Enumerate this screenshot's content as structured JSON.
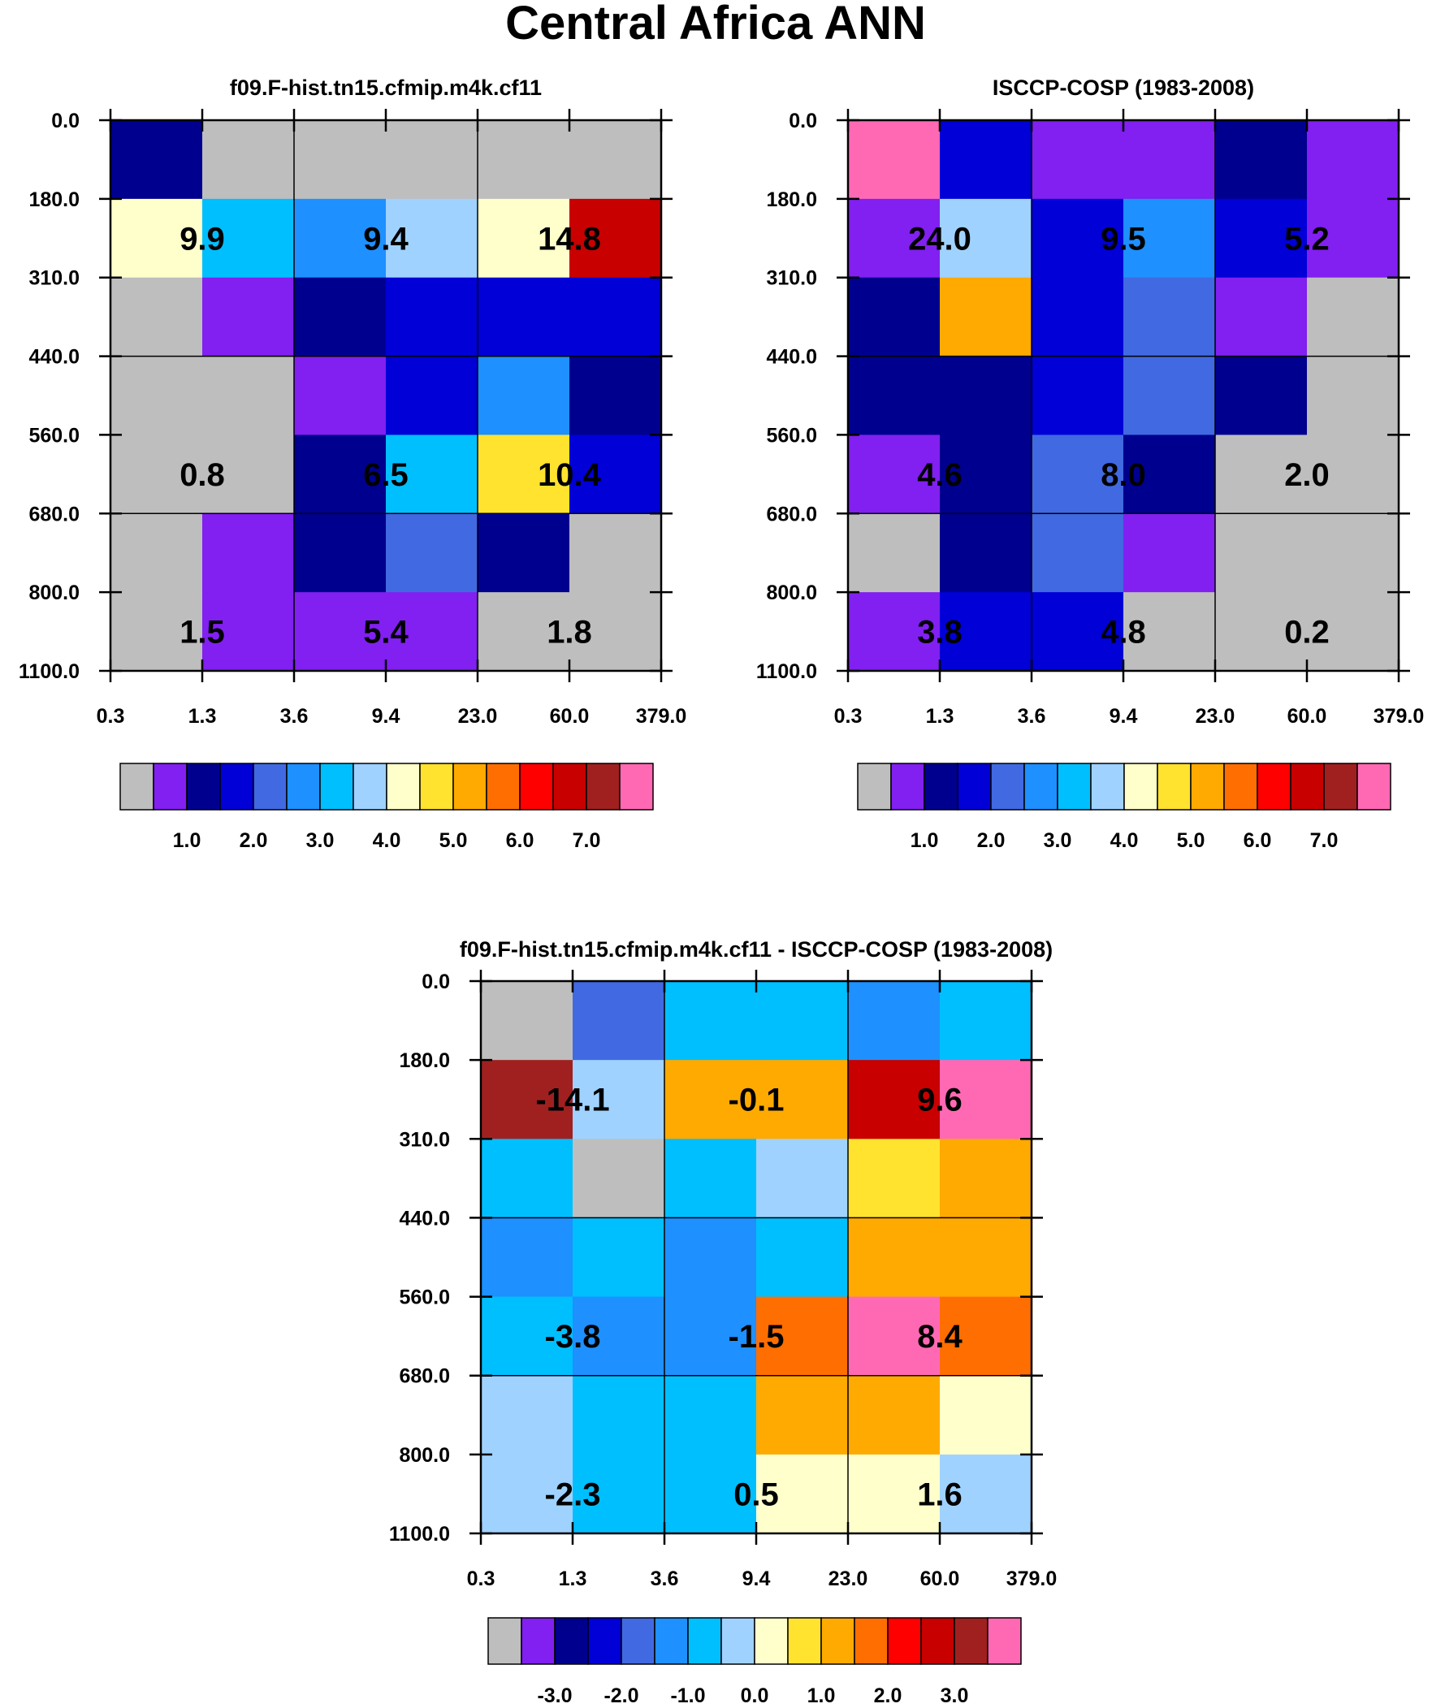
{
  "title": "Central Africa ANN",
  "colors": {
    "gray": "#BEBEBE",
    "purple": "#8120F0",
    "navy": "#00008F",
    "blue": "#0000D7",
    "royal": "#4169E1",
    "dodger": "#1E90FF",
    "sky": "#00BFFF",
    "lightblue": "#A0D2FF",
    "cream": "#FFFFCC",
    "yellow": "#FFE32F",
    "orange": "#FFAA00",
    "darkorange": "#FF6E00",
    "red": "#FF0000",
    "crimson": "#C80000",
    "brown": "#A02020",
    "pink": "#FF69B4"
  },
  "colorbar_palette": [
    "gray",
    "purple",
    "navy",
    "blue",
    "royal",
    "dodger",
    "sky",
    "lightblue",
    "cream",
    "yellow",
    "orange",
    "darkorange",
    "red",
    "crimson",
    "brown",
    "pink"
  ],
  "chart_data": [
    {
      "type": "heatmap",
      "title": "f09.F-hist.tn15.cfmip.m4k.cf11",
      "x_ticks": [
        "0.3",
        "1.3",
        "3.6",
        "9.4",
        "23.0",
        "60.0",
        "379.0"
      ],
      "y_ticks": [
        "0.0",
        "180.0",
        "310.0",
        "440.0",
        "560.0",
        "680.0",
        "800.0",
        "1100.0"
      ],
      "cells": [
        [
          "navy",
          "gray",
          "gray",
          "gray",
          "gray",
          "gray"
        ],
        [
          "cream",
          "sky",
          "dodger",
          "lightblue",
          "cream",
          "crimson"
        ],
        [
          "gray",
          "purple",
          "navy",
          "blue",
          "blue",
          "blue"
        ],
        [
          "gray",
          "gray",
          "purple",
          "blue",
          "dodger",
          "navy"
        ],
        [
          "gray",
          "gray",
          "navy",
          "sky",
          "yellow",
          "blue"
        ],
        [
          "gray",
          "purple",
          "navy",
          "royal",
          "navy",
          "gray"
        ],
        [
          "gray",
          "purple",
          "purple",
          "purple",
          "gray",
          "gray"
        ]
      ],
      "annotations": [
        {
          "row": 1,
          "col": 1,
          "value": "9.9"
        },
        {
          "row": 1,
          "col": 3,
          "value": "9.4"
        },
        {
          "row": 1,
          "col": 5,
          "value": "14.8"
        },
        {
          "row": 4,
          "col": 1,
          "value": "0.8"
        },
        {
          "row": 4,
          "col": 3,
          "value": "6.5"
        },
        {
          "row": 4,
          "col": 5,
          "value": "10.4"
        },
        {
          "row": 6,
          "col": 1,
          "value": "1.5"
        },
        {
          "row": 6,
          "col": 3,
          "value": "5.4"
        },
        {
          "row": 6,
          "col": 5,
          "value": "1.8"
        }
      ],
      "colorbar": {
        "labels": [
          "1.0",
          "2.0",
          "3.0",
          "4.0",
          "5.0",
          "6.0",
          "7.0"
        ]
      }
    },
    {
      "type": "heatmap",
      "title": "ISCCP-COSP (1983-2008)",
      "x_ticks": [
        "0.3",
        "1.3",
        "3.6",
        "9.4",
        "23.0",
        "60.0",
        "379.0"
      ],
      "y_ticks": [
        "0.0",
        "180.0",
        "310.0",
        "440.0",
        "560.0",
        "680.0",
        "800.0",
        "1100.0"
      ],
      "cells": [
        [
          "pink",
          "blue",
          "purple",
          "purple",
          "navy",
          "purple"
        ],
        [
          "purple",
          "lightblue",
          "blue",
          "dodger",
          "blue",
          "purple"
        ],
        [
          "navy",
          "orange",
          "blue",
          "royal",
          "purple",
          "gray"
        ],
        [
          "navy",
          "navy",
          "blue",
          "royal",
          "navy",
          "gray"
        ],
        [
          "purple",
          "navy",
          "royal",
          "navy",
          "gray",
          "gray"
        ],
        [
          "gray",
          "navy",
          "royal",
          "purple",
          "gray",
          "gray"
        ],
        [
          "purple",
          "blue",
          "blue",
          "gray",
          "gray",
          "gray"
        ]
      ],
      "annotations": [
        {
          "row": 1,
          "col": 1,
          "value": "24.0"
        },
        {
          "row": 1,
          "col": 3,
          "value": "9.5"
        },
        {
          "row": 1,
          "col": 5,
          "value": "5.2"
        },
        {
          "row": 4,
          "col": 1,
          "value": "4.6"
        },
        {
          "row": 4,
          "col": 3,
          "value": "8.0"
        },
        {
          "row": 4,
          "col": 5,
          "value": "2.0"
        },
        {
          "row": 6,
          "col": 1,
          "value": "3.8"
        },
        {
          "row": 6,
          "col": 3,
          "value": "4.8"
        },
        {
          "row": 6,
          "col": 5,
          "value": "0.2"
        }
      ],
      "colorbar": {
        "labels": [
          "1.0",
          "2.0",
          "3.0",
          "4.0",
          "5.0",
          "6.0",
          "7.0"
        ]
      }
    },
    {
      "type": "heatmap",
      "title": "f09.F-hist.tn15.cfmip.m4k.cf11 - ISCCP-COSP (1983-2008)",
      "x_ticks": [
        "0.3",
        "1.3",
        "3.6",
        "9.4",
        "23.0",
        "60.0",
        "379.0"
      ],
      "y_ticks": [
        "0.0",
        "180.0",
        "310.0",
        "440.0",
        "560.0",
        "680.0",
        "800.0",
        "1100.0"
      ],
      "cells": [
        [
          "gray",
          "royal",
          "sky",
          "sky",
          "dodger",
          "sky"
        ],
        [
          "brown",
          "lightblue",
          "orange",
          "orange",
          "crimson",
          "pink"
        ],
        [
          "sky",
          "gray",
          "sky",
          "lightblue",
          "yellow",
          "orange"
        ],
        [
          "dodger",
          "sky",
          "dodger",
          "sky",
          "orange",
          "orange"
        ],
        [
          "sky",
          "dodger",
          "dodger",
          "darkorange",
          "pink",
          "darkorange"
        ],
        [
          "lightblue",
          "sky",
          "sky",
          "orange",
          "orange",
          "cream"
        ],
        [
          "lightblue",
          "sky",
          "sky",
          "cream",
          "cream",
          "lightblue"
        ]
      ],
      "annotations": [
        {
          "row": 1,
          "col": 1,
          "value": "-14.1"
        },
        {
          "row": 1,
          "col": 3,
          "value": "-0.1"
        },
        {
          "row": 1,
          "col": 5,
          "value": "9.6"
        },
        {
          "row": 4,
          "col": 1,
          "value": "-3.8"
        },
        {
          "row": 4,
          "col": 3,
          "value": "-1.5"
        },
        {
          "row": 4,
          "col": 5,
          "value": "8.4"
        },
        {
          "row": 6,
          "col": 1,
          "value": "-2.3"
        },
        {
          "row": 6,
          "col": 3,
          "value": "0.5"
        },
        {
          "row": 6,
          "col": 5,
          "value": "1.6"
        }
      ],
      "colorbar": {
        "labels": [
          "-3.0",
          "-2.0",
          "-1.0",
          "0.0",
          "1.0",
          "2.0",
          "3.0"
        ]
      }
    }
  ]
}
